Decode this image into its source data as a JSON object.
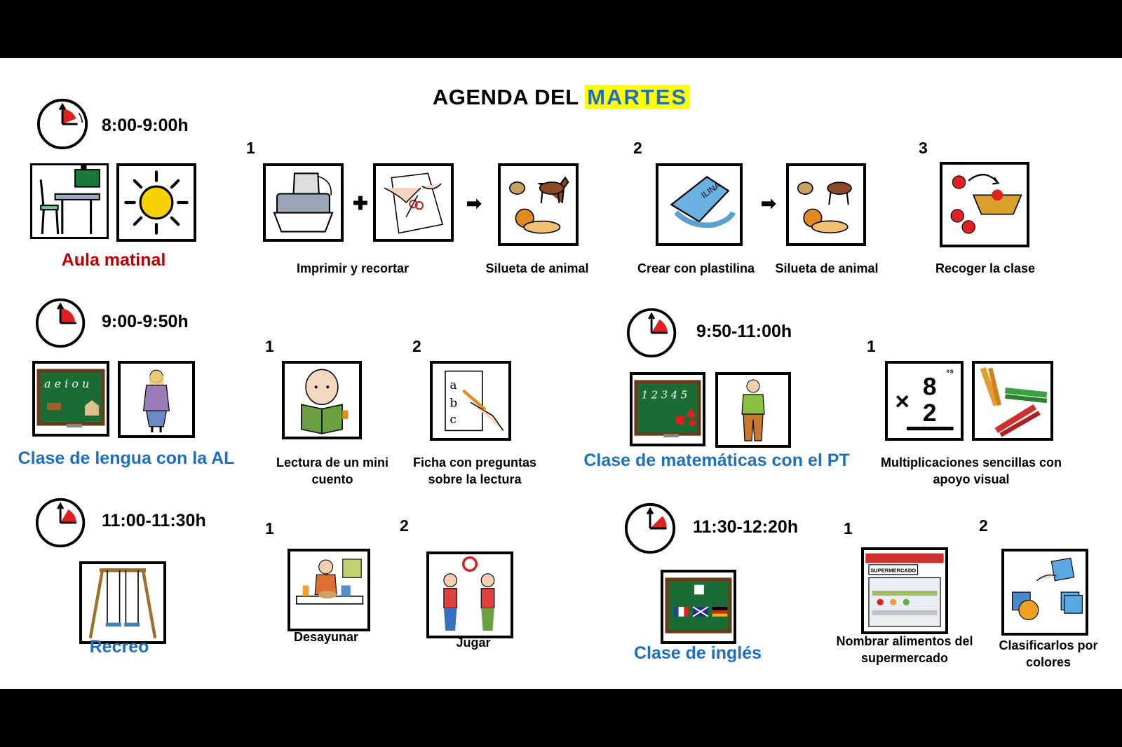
{
  "title": {
    "prefix": "AGENDA DEL",
    "day": "MARTES"
  },
  "colors": {
    "red_label": "#c00000",
    "blue_label": "#1f6fc0",
    "highlight": "#ffff00"
  },
  "blocks": [
    {
      "time": "8:00-9:00h",
      "class_label": "Aula matinal",
      "steps": [
        {
          "num": "1",
          "caption": "Imprimir y recortar"
        },
        {
          "num": "",
          "caption": "Silueta de animal"
        },
        {
          "num": "2",
          "caption": "Crear con plastilina"
        },
        {
          "num": "",
          "caption": "Silueta de animal"
        },
        {
          "num": "3",
          "caption": "Recoger la clase"
        }
      ]
    },
    {
      "time": "9:00-9:50h",
      "class_label": "Clase de lengua con la AL",
      "steps": [
        {
          "num": "1",
          "caption": "Lectura de un mini cuento"
        },
        {
          "num": "2",
          "caption": "Ficha con preguntas sobre la lectura"
        }
      ]
    },
    {
      "time": "9:50-11:00h",
      "class_label": "Clase de matemáticas con el PT",
      "steps": [
        {
          "num": "1",
          "caption": "Multiplicaciones sencillas con apoyo visual"
        }
      ]
    },
    {
      "time": "11:00-11:30h",
      "class_label": "Recreo",
      "steps": [
        {
          "num": "1",
          "caption": "Desayunar"
        },
        {
          "num": "2",
          "caption": "Jugar"
        }
      ]
    },
    {
      "time": "11:30-12:20h",
      "class_label": "Clase de inglés",
      "steps": [
        {
          "num": "1",
          "caption": "Nombrar alimentos del supermercado"
        },
        {
          "num": "2",
          "caption": "Clasificarlos por colores"
        }
      ]
    }
  ],
  "icons": {
    "clock": "clock-icon",
    "desk": "classroom-desk-icon",
    "sun": "sun-icon",
    "printer": "printer-icon",
    "scissors": "cutting-paper-icon",
    "animals": "animals-icon",
    "plasticine": "plasticine-icon",
    "basket": "basket-balls-icon"
  },
  "pictogram_text": {
    "blackboard_vowels": "a e i o u",
    "blackboard_numbers": "1 2 3 4 5",
    "multiplication_top": "8",
    "multiplication_bottom": "2",
    "multiplication_sign": "×",
    "plus_s": "+s",
    "plasticine_brand": "ILINA",
    "supermarket_sign": "SUPERMERCADO"
  }
}
